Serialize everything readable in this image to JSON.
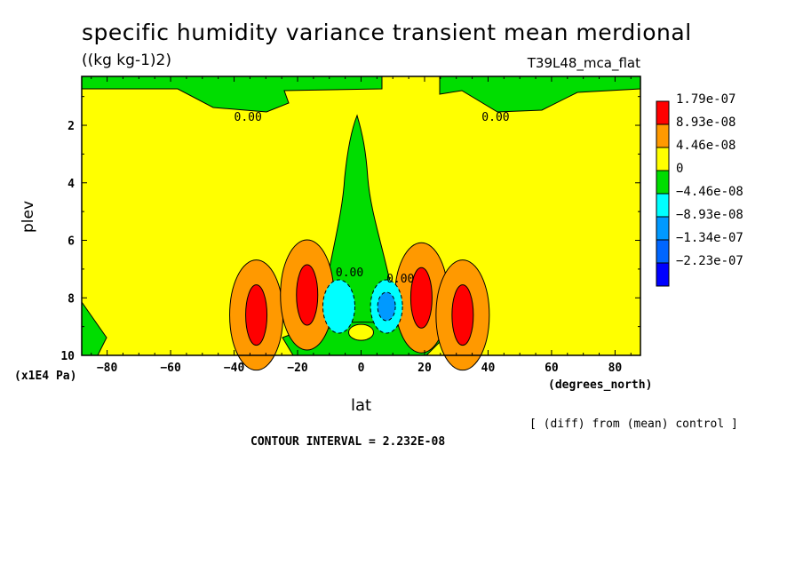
{
  "chart_data": {
    "type": "heatmap",
    "title": "specific humidity variance transient mean merdional",
    "units": "((kg kg-1)2)",
    "experiment": "T39L48_mca_flat",
    "xlabel": "lat",
    "x_units": "(degrees_north)",
    "ylabel": "plev",
    "y_units": "(x1E4 Pa)",
    "x_ticks": [
      -80,
      -60,
      -40,
      -20,
      0,
      20,
      40,
      60,
      80
    ],
    "y_ticks": [
      2,
      4,
      6,
      8,
      10
    ],
    "xlim": [
      -88,
      88
    ],
    "ylim": [
      10,
      0.3
    ],
    "legend": {
      "placement": "right",
      "levels": [
        "1.79e-07",
        "8.93e-08",
        "4.46e-08",
        "0",
        "-4.46e-08",
        "-8.93e-08",
        "-1.34e-07",
        "-2.23e-07"
      ],
      "colors": [
        "#ff0000",
        "#ff9900",
        "#ffff00",
        "#00dd00",
        "#00ffff",
        "#0099ff",
        "#0066ff",
        "#0000ff"
      ]
    },
    "contour_labels": [
      "0.00",
      "0.00",
      "0.00",
      "0.00"
    ],
    "contour_interval_text": "CONTOUR INTERVAL = 2.232E-08",
    "note": "[ (diff) from (mean) control ]",
    "features": [
      {
        "lat": -33,
        "plev": 8.6,
        "value": 1.79e-07
      },
      {
        "lat": -17,
        "plev": 7.9,
        "value": 1.79e-07
      },
      {
        "lat": 19,
        "plev": 8.0,
        "value": 1.79e-07
      },
      {
        "lat": 32,
        "plev": 8.6,
        "value": 1.79e-07
      },
      {
        "lat": -7,
        "plev": 8.3,
        "value": -8.93e-08
      },
      {
        "lat": 8,
        "plev": 8.3,
        "value": -1.34e-07
      },
      {
        "lat": 0,
        "plev": 9.2,
        "value": 4.46e-08
      }
    ]
  }
}
